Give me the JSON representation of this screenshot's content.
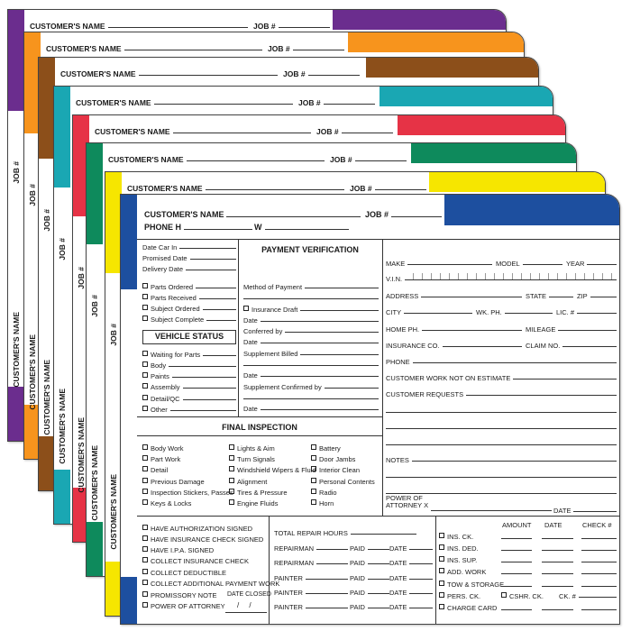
{
  "folders": [
    {
      "color": "#6b2d8e",
      "customer_label": "CUSTOMER'S NAME",
      "job_label": "JOB #",
      "side_job_label": "JOB #",
      "side_customer_label": "CUSTOMER'S NAME"
    },
    {
      "color": "#f7941d",
      "customer_label": "CUSTOMER'S NAME",
      "job_label": "JOB #",
      "side_job_label": "JOB #",
      "side_customer_label": "CUSTOMER'S NAME"
    },
    {
      "color": "#8c4f1a",
      "customer_label": "CUSTOMER'S NAME",
      "job_label": "JOB #",
      "side_job_label": "JOB #",
      "side_customer_label": "CUSTOMER'S NAME"
    },
    {
      "color": "#1aa7b3",
      "customer_label": "CUSTOMER'S NAME",
      "job_label": "JOB #",
      "side_job_label": "JOB #",
      "side_customer_label": "CUSTOMER'S NAME"
    },
    {
      "color": "#e63346",
      "customer_label": "CUSTOMER'S NAME",
      "job_label": "JOB #",
      "side_job_label": "JOB #",
      "side_customer_label": "CUSTOMER'S NAME"
    },
    {
      "color": "#0e8a5c",
      "customer_label": "CUSTOMER'S NAME",
      "job_label": "JOB #",
      "side_job_label": "JOB #",
      "side_customer_label": "CUSTOMER'S NAME"
    },
    {
      "color": "#f6e600",
      "customer_label": "CUSTOMER'S NAME",
      "job_label": "JOB #",
      "side_job_label": "JOB #",
      "side_customer_label": "CUSTOMER'S NAME"
    }
  ],
  "front": {
    "color": "#1d4f9f",
    "customer_label": "CUSTOMER'S NAME",
    "job_label": "JOB #",
    "phone_label": "PHONE H",
    "work_phone_label": "W",
    "dates": [
      "Date Car In",
      "Promised Date",
      "Delivery Date"
    ],
    "parts": [
      "Parts Ordered",
      "Parts Received",
      "Subject Ordered",
      "Subject Complete"
    ],
    "vehicle_status": {
      "title": "VEHICLE STATUS",
      "items": [
        "Waiting for Parts",
        "Body",
        "Paints",
        "Assembly",
        "Detail/QC",
        "Other"
      ]
    },
    "payment_verification": {
      "title": "PAYMENT VERIFICATION",
      "items": [
        "Method of Payment",
        "Insurance Draft",
        "Date",
        "Conferred by",
        "Date",
        "Supplement Billed",
        "Date",
        "Supplement Confirmed by",
        "Date"
      ]
    },
    "vehicle_fields": [
      [
        "MAKE",
        "MODEL",
        "YEAR"
      ],
      [
        "V.I.N."
      ],
      [
        "ADDRESS",
        "STATE",
        "ZIP"
      ],
      [
        "CITY",
        "WK. PH.",
        "LIC. #"
      ],
      [
        "HOME PH.",
        "MILEAGE"
      ],
      [
        "INSURANCE CO.",
        "CLAIM NO."
      ],
      [
        "PHONE"
      ],
      [
        "CUSTOMER WORK NOT ON ESTIMATE"
      ],
      [
        "CUSTOMER REQUESTS"
      ]
    ],
    "notes_label": "NOTES",
    "power_of_attorney": {
      "label": "POWER OF\nATTORNEY X",
      "date_label": "DATE"
    },
    "final_inspection": {
      "title": "FINAL INSPECTION",
      "columns": [
        [
          "Body Work",
          "Part Work",
          "Detail",
          "Previous Damage",
          "Inspection Stickers, Passes",
          "Keys & Locks"
        ],
        [
          "Lights & Aim",
          "Turn Signals",
          "Windshield Wipers & Fluid",
          "Alignment",
          "Tires & Pressure",
          "Engine Fluids"
        ],
        [
          "Battery",
          "Door Jambs",
          "Interior Clean",
          "Personal Contents",
          "Radio",
          "Horn"
        ]
      ]
    },
    "closing_checks": [
      "HAVE AUTHORIZATION SIGNED",
      "HAVE INSURANCE CHECK SIGNED",
      "HAVE I.P.A. SIGNED",
      "COLLECT INSURANCE CHECK",
      "COLLECT DEDUCTIBLE",
      "COLLECT ADDITIONAL PAYMENT WORK",
      "PROMISSORY NOTE",
      "POWER OF ATTORNEY"
    ],
    "date_closed": {
      "label": "DATE CLOSED",
      "value": "/     /"
    },
    "repair": {
      "total_label": "TOTAL REPAIR HOURS",
      "rows": [
        [
          "REPAIRMAN",
          "PAID",
          "DATE"
        ],
        [
          "REPAIRMAN",
          "PAID",
          "DATE"
        ],
        [
          "PAINTER",
          "PAID",
          "DATE"
        ],
        [
          "PAINTER",
          "PAID",
          "DATE"
        ],
        [
          "PAINTER",
          "PAID",
          "DATE"
        ]
      ]
    },
    "payments": {
      "headers": [
        "AMOUNT",
        "DATE",
        "CHECK #"
      ],
      "items": [
        "INS. CK.",
        "INS. DED.",
        "INS. SUP.",
        "ADD. WORK",
        "TOW & STORAGE",
        "PERS. CK.",
        "CHARGE CARD"
      ],
      "extra": [
        "CSHR. CK.",
        "CK. #"
      ]
    }
  }
}
